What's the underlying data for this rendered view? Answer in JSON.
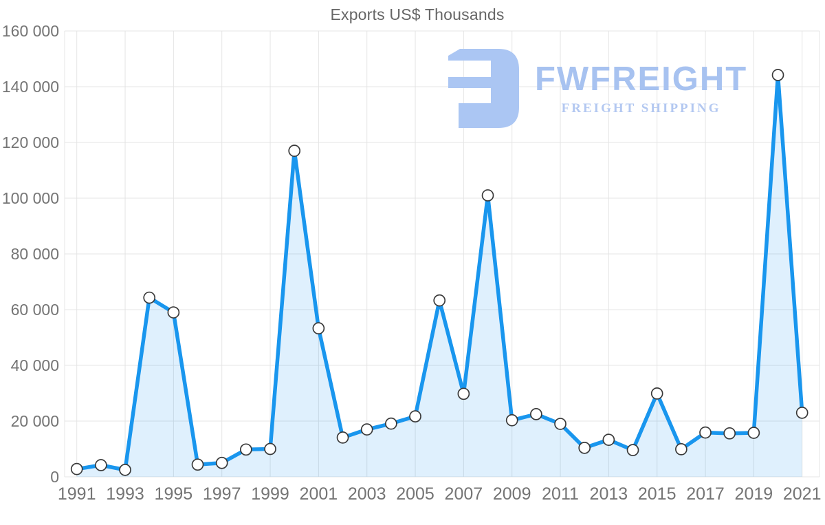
{
  "title": "Exports US$ Thousands",
  "watermark": {
    "brand": "FWFREIGHT",
    "tagline": "FREIGHT SHIPPING",
    "logo_color": "#abc6f3",
    "brand_color": "#a7c2f0",
    "tagline_color": "#b3c8f1"
  },
  "chart_data": {
    "type": "area",
    "title": "Exports US$ Thousands",
    "xlabel": "",
    "ylabel": "",
    "categories": [
      1991,
      1992,
      1993,
      1994,
      1995,
      1996,
      1997,
      1998,
      1999,
      2000,
      2001,
      2002,
      2003,
      2004,
      2005,
      2006,
      2007,
      2008,
      2009,
      2010,
      2011,
      2012,
      2013,
      2014,
      2015,
      2016,
      2017,
      2018,
      2019,
      2020,
      2021
    ],
    "values": [
      2800,
      4200,
      2500,
      64300,
      59000,
      4400,
      5000,
      9800,
      10000,
      117000,
      53300,
      14100,
      17000,
      19100,
      21700,
      63300,
      29800,
      101000,
      20300,
      22500,
      19000,
      10400,
      13300,
      9600,
      29900,
      9900,
      15900,
      15600,
      15800,
      144200,
      23000
    ],
    "ylim": [
      0,
      160000
    ],
    "y_tick_step": 20000,
    "y_tick_labels": [
      "0",
      "20 000",
      "40 000",
      "60 000",
      "80 000",
      "100 000",
      "120 000",
      "140 000",
      "160 000"
    ],
    "x_tick_labels": [
      "1991",
      "1993",
      "1995",
      "1997",
      "1999",
      "2001",
      "2003",
      "2005",
      "2007",
      "2009",
      "2011",
      "2013",
      "2015",
      "2017",
      "2019",
      "2021"
    ],
    "x_label_step": 2,
    "grid": true,
    "legend": "none",
    "line_color": "#1996ee",
    "fill_color": "rgba(25,150,238,0.14)",
    "grid_color": "#e4e4e4",
    "tick_color": "#757575",
    "marker_fill": "#ffffff",
    "marker_stroke": "#3a3a3a",
    "marker_radius": 8,
    "line_width": 5.5
  }
}
